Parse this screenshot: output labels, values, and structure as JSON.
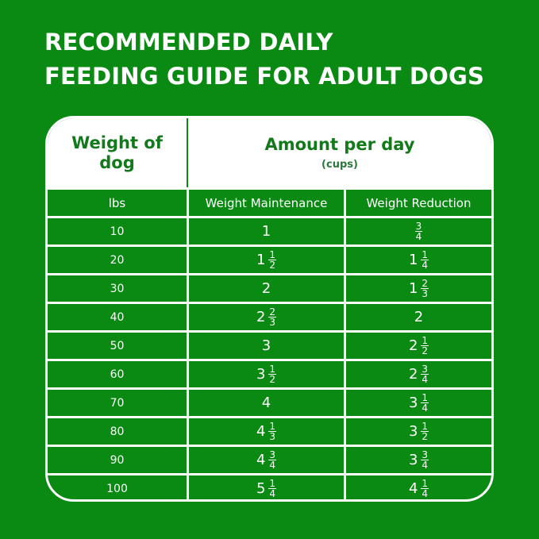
{
  "title": {
    "line1": "RECOMMENDED DAILY",
    "line2": "FEEDING GUIDE FOR ADULT DOGS"
  },
  "header": {
    "weight_line1": "Weight of",
    "weight_line2": "dog",
    "amount": "Amount per day",
    "unit": "(cups)"
  },
  "subheader": {
    "lbs": "lbs",
    "maintenance": "Weight Maintenance",
    "reduction": "Weight Reduction"
  },
  "rows": [
    {
      "lbs": "10",
      "m": {
        "whole": "1",
        "num": "",
        "den": ""
      },
      "r": {
        "whole": "",
        "num": "3",
        "den": "4"
      }
    },
    {
      "lbs": "20",
      "m": {
        "whole": "1",
        "num": "1",
        "den": "2"
      },
      "r": {
        "whole": "1",
        "num": "1",
        "den": "4"
      }
    },
    {
      "lbs": "30",
      "m": {
        "whole": "2",
        "num": "",
        "den": ""
      },
      "r": {
        "whole": "1",
        "num": "2",
        "den": "3"
      }
    },
    {
      "lbs": "40",
      "m": {
        "whole": "2",
        "num": "2",
        "den": "3"
      },
      "r": {
        "whole": "2",
        "num": "",
        "den": ""
      }
    },
    {
      "lbs": "50",
      "m": {
        "whole": "3",
        "num": "",
        "den": ""
      },
      "r": {
        "whole": "2",
        "num": "1",
        "den": "2"
      }
    },
    {
      "lbs": "60",
      "m": {
        "whole": "3",
        "num": "1",
        "den": "2"
      },
      "r": {
        "whole": "2",
        "num": "3",
        "den": "4"
      }
    },
    {
      "lbs": "70",
      "m": {
        "whole": "4",
        "num": "",
        "den": ""
      },
      "r": {
        "whole": "3",
        "num": "1",
        "den": "4"
      }
    },
    {
      "lbs": "80",
      "m": {
        "whole": "4",
        "num": "1",
        "den": "3"
      },
      "r": {
        "whole": "3",
        "num": "1",
        "den": "2"
      }
    },
    {
      "lbs": "90",
      "m": {
        "whole": "4",
        "num": "3",
        "den": "4"
      },
      "r": {
        "whole": "3",
        "num": "3",
        "den": "4"
      }
    },
    {
      "lbs": "100",
      "m": {
        "whole": "5",
        "num": "1",
        "den": "4"
      },
      "r": {
        "whole": "4",
        "num": "1",
        "den": "4"
      }
    }
  ],
  "colors": {
    "background": "#0a8a12",
    "header_text": "#127a1a",
    "grid": "#ffffff"
  }
}
